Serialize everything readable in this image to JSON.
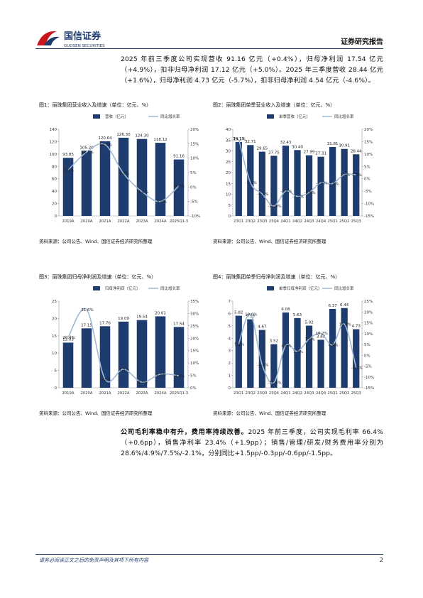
{
  "header": {
    "logo_cn": "国信证券",
    "logo_en": "GUOSEN SECURITIES",
    "report_type": "证券研究报告"
  },
  "paragraphs": [
    {
      "text": "2025 年前三季度公司实现营收 91.16 亿元（+0.4%），归母净利润 17.54 亿元（+4.9%），扣非归母净利润 17.12 亿元（+5.0%）。2025 年三季度营收 28.44 亿元（+1.6%），归母净利润 4.73 亿元（-5.7%），扣非归母净利润 4.54 亿元（-4.6%）。"
    },
    {
      "lead": "公司毛利率稳中有升，费用率持续改善。",
      "text": "2025 年前三季度，公司实现毛利率 66.4%（+0.6pp），销售净利率 23.4%（+1.9pp）；销售/管理/研发/财务费用率分别为 28.6%/4.9%/7.5%/-2.1%，分别同比+1.5pp/-0.3pp/-0.6pp/-1.5pp。"
    }
  ],
  "chart_data": [
    {
      "type": "bar",
      "title": "图1：丽珠集团营业收入及增速（单位：亿元、%）",
      "source": "资料来源：公司公告、Wind、国信证券经济研究所整理",
      "categories": [
        "2019A",
        "2020A",
        "2021A",
        "2022A",
        "2023A",
        "2024A",
        "2025Q1-3"
      ],
      "series": [
        {
          "name": "营收（亿元）",
          "color": "#1f3c6e",
          "values": [
            93.85,
            105.2,
            120.64,
            126.3,
            124.3,
            118.12,
            91.16
          ],
          "value_labels": [
            "93.85",
            "105.20",
            "120.64",
            "126.30",
            "124.30",
            "118.12",
            "91.16"
          ]
        },
        {
          "name": "同比增长率",
          "type": "line",
          "axis": "y2",
          "color": "#9fbad3",
          "values": [
            5.9,
            12.1,
            14.7,
            4.7,
            -1.6,
            -5.0,
            0.4
          ],
          "value_labels": [
            "5.9%",
            "12.1%",
            "14.7%",
            "4.7%",
            "-1.6%",
            "-5.0%",
            "0.4%"
          ]
        }
      ],
      "ylim": [
        0,
        140
      ],
      "yticks": [
        0,
        20,
        40,
        60,
        80,
        100,
        120,
        140
      ],
      "y2lim": [
        -10,
        20
      ],
      "y2ticks": [
        {
          "value": -10,
          "label": "-10%"
        },
        {
          "value": -5,
          "label": "-5%"
        },
        {
          "value": 0,
          "label": "0%"
        },
        {
          "value": 5,
          "label": "5%"
        },
        {
          "value": 10,
          "label": "10%"
        },
        {
          "value": 15,
          "label": "15%"
        },
        {
          "value": 20,
          "label": "20%"
        }
      ]
    },
    {
      "type": "bar",
      "title": "图2：丽珠集团单季营业收入及增速（单位：亿元、%）",
      "source": "资料来源：公司公告、Wind、国信证券经济研究所整理",
      "categories": [
        "23Q1",
        "23Q2",
        "23Q3",
        "23Q4",
        "24Q1",
        "24Q2",
        "24Q3",
        "24Q4",
        "25Q1",
        "25Q2",
        "25Q3"
      ],
      "series": [
        {
          "name": "单季营收（亿元）",
          "color": "#1f3c6e",
          "values": [
            34.13,
            32.71,
            29.65,
            27.75,
            32.43,
            30.4,
            27.99,
            27.31,
            31.81,
            30.91,
            28.44
          ],
          "value_labels": [
            "34.13",
            "32.71",
            "29.65",
            "27.75",
            "32.43",
            "30.40",
            "27.99",
            "27.31",
            "31.81",
            "30.91",
            "28.44"
          ]
        },
        {
          "name": "同比增长率",
          "type": "line",
          "axis": "y2",
          "color": "#9fbad3",
          "values": [
            16.1,
            -1.5,
            -6.1,
            -11.0,
            -5.0,
            -7.1,
            -5.6,
            -1.6,
            -1.9,
            1.7,
            1.6
          ],
          "value_labels": [
            "16.1%",
            "-1.5%",
            "-6.1%",
            "-11.0%",
            "-5.0%",
            "-7.1%",
            "-5.6%",
            "-1.6%",
            "-1.9%",
            "1.7%",
            "1.6%"
          ]
        }
      ],
      "ylim": [
        0,
        40
      ],
      "yticks": [
        0,
        5,
        10,
        15,
        20,
        25,
        30,
        35,
        40
      ],
      "y2lim": [
        -15,
        20
      ],
      "y2ticks": [
        {
          "value": -15,
          "label": "-15%"
        },
        {
          "value": -10,
          "label": "-10%"
        },
        {
          "value": -5,
          "label": "-5%"
        },
        {
          "value": 0,
          "label": "0%"
        },
        {
          "value": 5,
          "label": "5%"
        },
        {
          "value": 10,
          "label": "10%"
        },
        {
          "value": 15,
          "label": "15%"
        },
        {
          "value": 20,
          "label": "20%"
        }
      ]
    },
    {
      "type": "bar",
      "title": "图3：丽珠集团归母净利润及增速（单位：亿元、%）",
      "source": "资料来源：公司公告、Wind、国信证券经济研究所整理",
      "categories": [
        "2019A",
        "2020A",
        "2021A",
        "2022A",
        "2023A",
        "2024A",
        "2025Q1-3"
      ],
      "series": [
        {
          "name": "归母净利润（亿元）",
          "color": "#1f3c6e",
          "values": [
            13.03,
            17.15,
            17.76,
            19.09,
            19.54,
            20.61,
            17.54
          ]
        },
        {
          "name": "同比增长率",
          "type": "line",
          "axis": "y2",
          "color": "#9fbad3",
          "values": [
            20.4,
            31.6,
            3.5,
            7.5,
            2.3,
            5.5,
            4.9
          ],
          "value_labels": [
            "20.4%",
            "31.6%",
            "3.5%",
            "7.5%",
            "2.3%",
            "5.5%",
            "4.9%"
          ]
        }
      ],
      "ylim": [
        0,
        25
      ],
      "yticks": [
        0,
        5,
        10,
        15,
        20,
        25
      ],
      "y2lim": [
        0,
        35
      ],
      "y2ticks": [
        {
          "value": 0,
          "label": "0%"
        },
        {
          "value": 5,
          "label": "5%"
        },
        {
          "value": 10,
          "label": "10%"
        },
        {
          "value": 15,
          "label": "15%"
        },
        {
          "value": 20,
          "label": "20%"
        },
        {
          "value": 25,
          "label": "25%"
        },
        {
          "value": 30,
          "label": "30%"
        },
        {
          "value": 35,
          "label": "35%"
        }
      ]
    },
    {
      "type": "bar",
      "title": "图4：丽珠集团单季归母净利润及增速（单位：亿元、%）",
      "source": "资料来源：公司公告、Wind、国信证券经济研究所整理",
      "categories": [
        "23Q1",
        "23Q2",
        "23Q3",
        "23Q4",
        "24Q1",
        "24Q2",
        "24Q3",
        "24Q4",
        "25Q1",
        "25Q2",
        "25Q3"
      ],
      "series": [
        {
          "name": "单季归母净利润（亿元）",
          "color": "#1f3c6e",
          "values": [
            5.82,
            5.53,
            4.67,
            3.52,
            6.08,
            5.63,
            5.02,
            3.88,
            6.37,
            6.44,
            4.73
          ]
        },
        {
          "name": "同比增长率",
          "type": "line",
          "axis": "y2",
          "color": "#9fbad3",
          "values": [
            5.2,
            19.0,
            -4.4,
            -12.6,
            4.5,
            1.8,
            7.5,
            10.2,
            4.8,
            14.4,
            -5.7
          ],
          "value_labels": [
            "5.2%",
            "19.0%",
            "-4.4%",
            "-12.6%",
            "4.5%",
            "1.8%",
            "7.5%",
            "10.2%",
            "4.8%",
            "14.4%",
            "-5.7%"
          ]
        }
      ],
      "ylim": [
        0,
        7
      ],
      "yticks": [
        0,
        1,
        2,
        3,
        4,
        5,
        6,
        7
      ],
      "y2lim": [
        -15,
        25
      ],
      "y2ticks": [
        {
          "value": -15,
          "label": "-15%"
        },
        {
          "value": -10,
          "label": "-10%"
        },
        {
          "value": -5,
          "label": "-5%"
        },
        {
          "value": 0,
          "label": "0%"
        },
        {
          "value": 5,
          "label": "5%"
        },
        {
          "value": 10,
          "label": "10%"
        },
        {
          "value": 15,
          "label": "15%"
        },
        {
          "value": 20,
          "label": "20%"
        },
        {
          "value": 25,
          "label": "25%"
        }
      ]
    }
  ],
  "footer": {
    "disclaimer": "请务必阅读正文之后的免责声明及其项下所有内容",
    "page": "2"
  }
}
